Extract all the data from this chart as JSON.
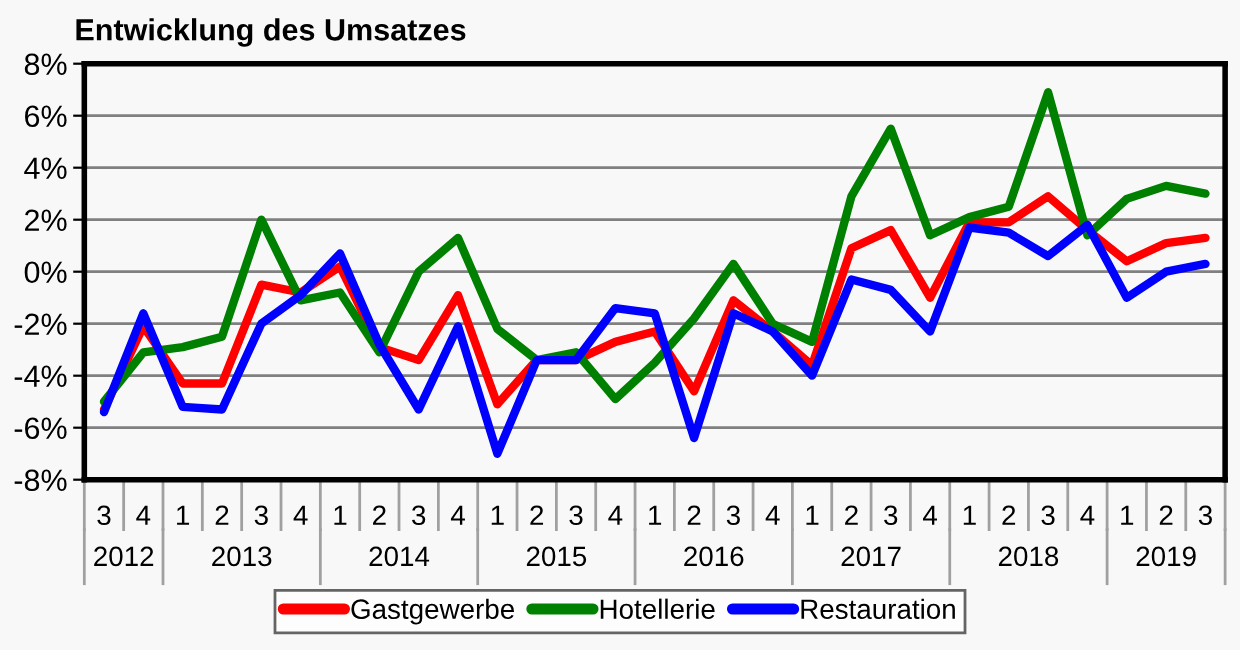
{
  "chart_data": {
    "type": "line",
    "title": "Entwicklung des Umsatzes",
    "categories": [
      "3",
      "4",
      "1",
      "2",
      "3",
      "4",
      "1",
      "2",
      "3",
      "4",
      "1",
      "2",
      "3",
      "4",
      "1",
      "2",
      "3",
      "4",
      "1",
      "2",
      "3",
      "4",
      "1",
      "2",
      "3",
      "4",
      "1",
      "2",
      "3"
    ],
    "annotations": [
      "2012",
      "2013",
      "2014",
      "2015",
      "2016",
      "2017",
      "2018",
      "2019"
    ],
    "series": [
      {
        "name": "Gastgewerbe",
        "color": "#ff0000",
        "values": [
          -5.3,
          -2.1,
          -4.3,
          -4.3,
          -0.5,
          -0.8,
          0.2,
          -2.9,
          -3.4,
          -0.9,
          -5.1,
          -3.4,
          -3.4,
          -2.7,
          -2.3,
          -4.6,
          -1.1,
          -2.3,
          -3.6,
          0.9,
          1.6,
          -1.0,
          1.9,
          1.9,
          2.9,
          1.6,
          0.4,
          1.1,
          1.3
        ]
      },
      {
        "name": "Hotellerie",
        "color": "#008000",
        "values": [
          -5.0,
          -3.1,
          -2.9,
          -2.5,
          2.0,
          -1.1,
          -0.8,
          -3.1,
          0.0,
          1.3,
          -2.2,
          -3.4,
          -3.1,
          -4.9,
          -3.5,
          -1.8,
          0.3,
          -2.0,
          -2.7,
          2.9,
          5.5,
          1.4,
          2.1,
          2.5,
          6.9,
          1.4,
          2.8,
          3.3,
          3.0
        ]
      },
      {
        "name": "Restauration",
        "color": "#0000ff",
        "values": [
          -5.4,
          -1.6,
          -5.2,
          -5.3,
          -2.0,
          -0.9,
          0.7,
          -2.8,
          -5.3,
          -2.1,
          -7.0,
          -3.4,
          -3.4,
          -1.4,
          -1.6,
          -6.4,
          -1.6,
          -2.3,
          -4.0,
          -0.3,
          -0.7,
          -2.3,
          1.7,
          1.5,
          0.6,
          1.8,
          -1.0,
          0.0,
          0.3
        ]
      }
    ],
    "ylim": [
      -8,
      8
    ],
    "yticks": [
      {
        "value": -8,
        "label": "-8%"
      },
      {
        "value": -6,
        "label": "-6%"
      },
      {
        "value": -4,
        "label": "-4%"
      },
      {
        "value": -2,
        "label": "-2%"
      },
      {
        "value": 0,
        "label": "0%"
      },
      {
        "value": 2,
        "label": "2%"
      },
      {
        "value": 4,
        "label": "4%"
      },
      {
        "value": 6,
        "label": "6%"
      },
      {
        "value": 8,
        "label": "8%"
      }
    ],
    "grid": "y",
    "legend": "bottom",
    "marker": "none",
    "line_style": "solid"
  }
}
